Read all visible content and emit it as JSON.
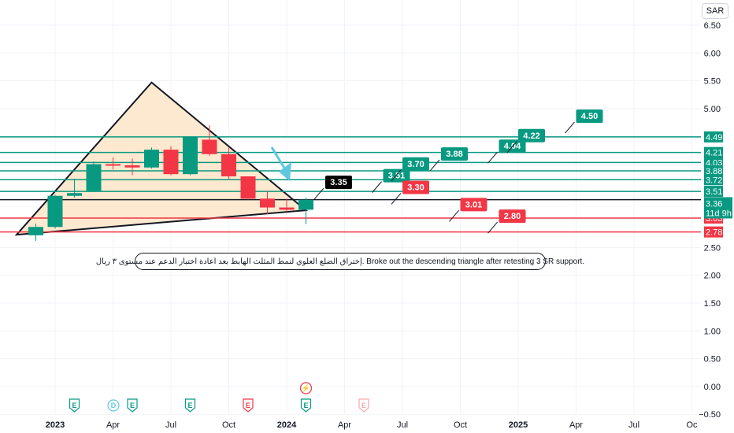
{
  "currency": "SAR",
  "annotation_text": "إختراق الضلع العلوي لنمط المثلث الهابط بعد اعادة اختبار الدعم عند مستوى ٣ ريال.  Broke out the descending triangle after retesting 3 SR support.",
  "colors": {
    "up": "#089981",
    "down": "#f23645",
    "triangle_fill": "#fde9cf",
    "arrow": "#5ec8e0",
    "line": "#131722"
  },
  "chart_data": {
    "type": "candlestick",
    "title": "",
    "y_axis": {
      "min": -0.5,
      "max": 6.5,
      "ticks": [
        "6.50",
        "6.00",
        "5.50",
        "5.00",
        "4.50",
        "4.00",
        "3.50",
        "3.00",
        "2.50",
        "2.00",
        "1.50",
        "1.00",
        "0.50",
        "0.00",
        "−0.50"
      ],
      "tick_values": [
        6.5,
        6.0,
        5.5,
        5.0,
        4.5,
        4.0,
        3.5,
        3.0,
        2.5,
        2.0,
        1.5,
        1.0,
        0.5,
        0.0,
        -0.5
      ]
    },
    "x_axis": {
      "ticks": [
        "2023",
        "Apr",
        "Jul",
        "Oct",
        "2024",
        "Apr",
        "Jul",
        "Oct",
        "2025",
        "Apr",
        "Jul",
        "Oc"
      ],
      "tick_dates": [
        "2023-01",
        "2023-04",
        "2023-07",
        "2023-10",
        "2024-01",
        "2024-04",
        "2024-07",
        "2024-10",
        "2025-01",
        "2025-04",
        "2025-07",
        "2025-10"
      ],
      "bold": [
        "2023",
        "2024",
        "2025"
      ]
    },
    "candles": [
      {
        "date": "2022-12",
        "open": 2.72,
        "high": 2.93,
        "low": 2.62,
        "close": 2.87
      },
      {
        "date": "2023-01",
        "open": 2.87,
        "high": 3.45,
        "low": 2.84,
        "close": 3.43
      },
      {
        "date": "2023-02",
        "open": 3.43,
        "high": 3.74,
        "low": 3.4,
        "close": 3.48
      },
      {
        "date": "2023-03",
        "open": 3.52,
        "high": 4.05,
        "low": 3.5,
        "close": 4.0
      },
      {
        "date": "2023-04",
        "open": 4.0,
        "high": 4.12,
        "low": 3.9,
        "close": 3.98
      },
      {
        "date": "2023-05",
        "open": 3.98,
        "high": 4.1,
        "low": 3.8,
        "close": 3.94
      },
      {
        "date": "2023-06",
        "open": 3.94,
        "high": 4.3,
        "low": 3.92,
        "close": 4.26
      },
      {
        "date": "2023-07",
        "open": 4.26,
        "high": 4.32,
        "low": 3.8,
        "close": 3.82
      },
      {
        "date": "2023-08",
        "open": 3.82,
        "high": 4.5,
        "low": 3.8,
        "close": 4.49
      },
      {
        "date": "2023-09",
        "open": 4.44,
        "high": 4.7,
        "low": 4.15,
        "close": 4.18
      },
      {
        "date": "2023-10",
        "open": 4.18,
        "high": 4.3,
        "low": 3.72,
        "close": 3.78
      },
      {
        "date": "2023-11",
        "open": 3.78,
        "high": 3.78,
        "low": 3.36,
        "close": 3.38
      },
      {
        "date": "2023-12",
        "open": 3.38,
        "high": 3.52,
        "low": 3.1,
        "close": 3.22
      },
      {
        "date": "2024-01",
        "open": 3.22,
        "high": 3.38,
        "low": 3.14,
        "close": 3.18
      },
      {
        "date": "2024-02",
        "open": 3.18,
        "high": 3.4,
        "low": 2.92,
        "close": 3.36
      }
    ],
    "horizontal_levels": [
      {
        "value": 4.49,
        "label": "4.49",
        "color": "#089981"
      },
      {
        "value": 4.21,
        "label": "4.21",
        "color": "#089981"
      },
      {
        "value": 4.03,
        "label": "4.03",
        "color": "#089981"
      },
      {
        "value": 3.88,
        "label": "3.88",
        "color": "#089981"
      },
      {
        "value": 3.72,
        "label": "3.72",
        "color": "#089981"
      },
      {
        "value": 3.51,
        "label": "3.51",
        "color": "#089981"
      },
      {
        "value": 3.36,
        "label": "3.36",
        "color": "#131722"
      },
      {
        "value": 3.03,
        "label": "3.03",
        "color": "#f23645"
      },
      {
        "value": 2.78,
        "label": "2.78",
        "color": "#f23645"
      }
    ],
    "current_price": {
      "value": "3.36",
      "countdown": "11d 9h",
      "color": "#089981",
      "y": 3.25
    },
    "target_labels": [
      {
        "text": "3.35",
        "date": "2024-03",
        "y": 3.68,
        "color": "#000000"
      },
      {
        "text": "3.51",
        "date": "2024-06",
        "y": 3.8,
        "color": "#089981"
      },
      {
        "text": "3.30",
        "date": "2024-07",
        "y": 3.59,
        "color": "#f23645"
      },
      {
        "text": "3.70",
        "date": "2024-07",
        "y": 4.01,
        "color": "#089981"
      },
      {
        "text": "3.88",
        "date": "2024-09",
        "y": 4.19,
        "color": "#089981"
      },
      {
        "text": "3.01",
        "date": "2024-10",
        "y": 3.28,
        "color": "#f23645"
      },
      {
        "text": "4.04",
        "date": "2024-12",
        "y": 4.33,
        "color": "#089981"
      },
      {
        "text": "2.80",
        "date": "2024-12",
        "y": 3.07,
        "color": "#f23645"
      },
      {
        "text": "4.22",
        "date": "2025-01",
        "y": 4.52,
        "color": "#089981"
      },
      {
        "text": "4.50",
        "date": "2025-04",
        "y": 4.87,
        "color": "#089981"
      }
    ],
    "triangle": [
      {
        "date": "2022-11",
        "y": 2.73
      },
      {
        "date": "2023-06",
        "y": 5.47
      },
      {
        "date": "2024-02",
        "y": 3.17
      }
    ],
    "events": [
      {
        "date": "2023-02",
        "text": "E",
        "color": "#089981"
      },
      {
        "date": "2023-05",
        "text": "D",
        "color": "#5ec8e0"
      },
      {
        "date": "2023-05",
        "text": "E",
        "color": "#089981"
      },
      {
        "date": "2023-08",
        "text": "E",
        "color": "#089981"
      },
      {
        "date": "2023-11",
        "text": "E",
        "color": "#f23645"
      },
      {
        "date": "2024-02",
        "text": "E",
        "color": "#089981"
      },
      {
        "date": "2024-02",
        "text": "⚡",
        "color": "#f23645"
      },
      {
        "date": "2024-05",
        "text": "E",
        "color": "#f7a6ad"
      }
    ]
  }
}
